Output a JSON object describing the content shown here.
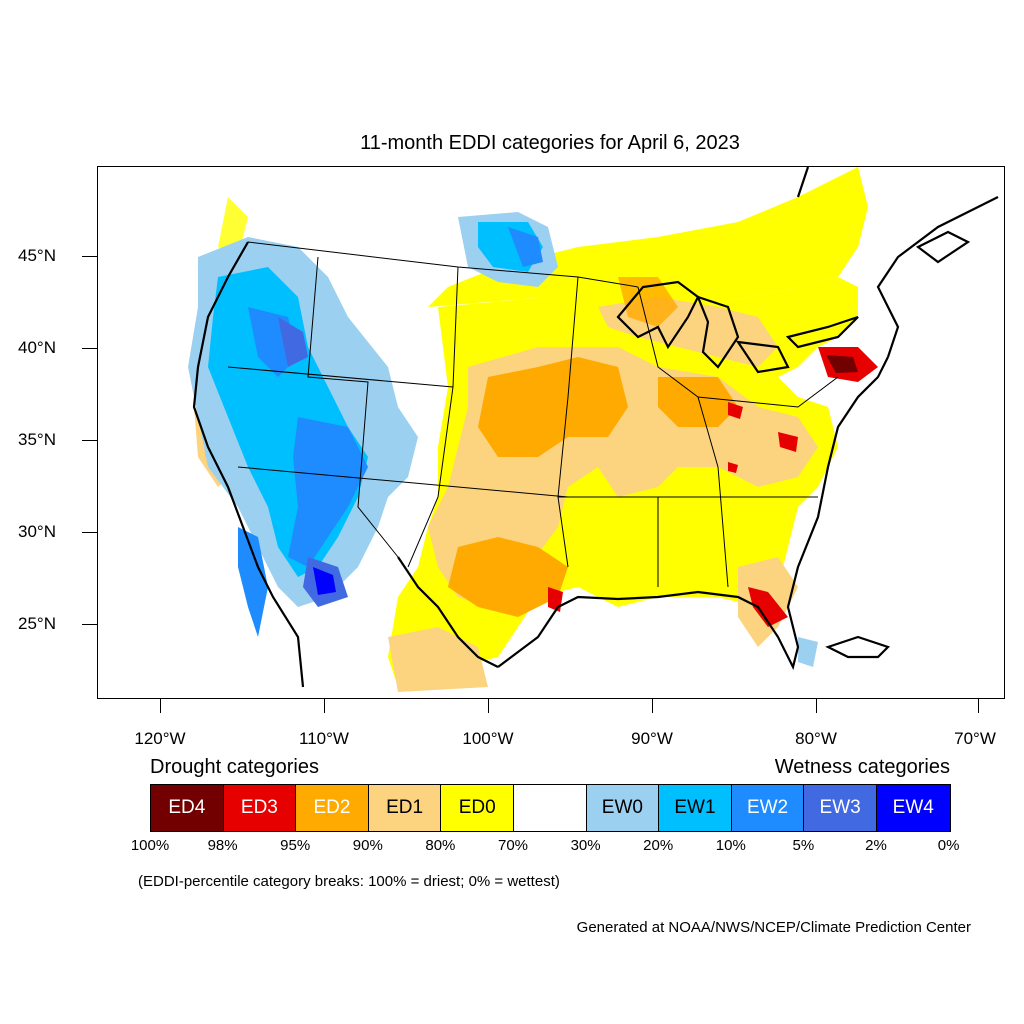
{
  "title": "11-month EDDI categories for April 6, 2023",
  "map": {
    "lat_labels": [
      "45°N",
      "40°N",
      "35°N",
      "30°N",
      "25°N"
    ],
    "lon_labels": [
      "120°W",
      "110°W",
      "100°W",
      "90°W",
      "80°W",
      "70°W"
    ]
  },
  "legend": {
    "drought_heading": "Drought categories",
    "wetness_heading": "Wetness categories",
    "categories": [
      {
        "label": "ED4",
        "color": "#730000",
        "text_color": "#ffffff"
      },
      {
        "label": "ED3",
        "color": "#e60000",
        "text_color": "#ffffff"
      },
      {
        "label": "ED2",
        "color": "#ffaa00",
        "text_color": "#ffffff"
      },
      {
        "label": "ED1",
        "color": "#fcd37f",
        "text_color": "#000000"
      },
      {
        "label": "ED0",
        "color": "#ffff00",
        "text_color": "#000000"
      },
      {
        "label": "",
        "color": "#ffffff",
        "text_color": "#000000"
      },
      {
        "label": "EW0",
        "color": "#9bd0f0",
        "text_color": "#000000"
      },
      {
        "label": "EW1",
        "color": "#00bfff",
        "text_color": "#000000"
      },
      {
        "label": "EW2",
        "color": "#1e8cff",
        "text_color": "#ffffff"
      },
      {
        "label": "EW3",
        "color": "#4169e1",
        "text_color": "#ffffff"
      },
      {
        "label": "EW4",
        "color": "#0000ff",
        "text_color": "#ffffff"
      }
    ],
    "breaks": [
      "100%",
      "98%",
      "95%",
      "90%",
      "80%",
      "70%",
      "30%",
      "20%",
      "10%",
      "5%",
      "2%",
      "0%"
    ]
  },
  "note": "(EDDI-percentile category breaks: 100% = driest; 0% = wettest)",
  "credit": "Generated at NOAA/NWS/NCEP/Climate Prediction Center"
}
